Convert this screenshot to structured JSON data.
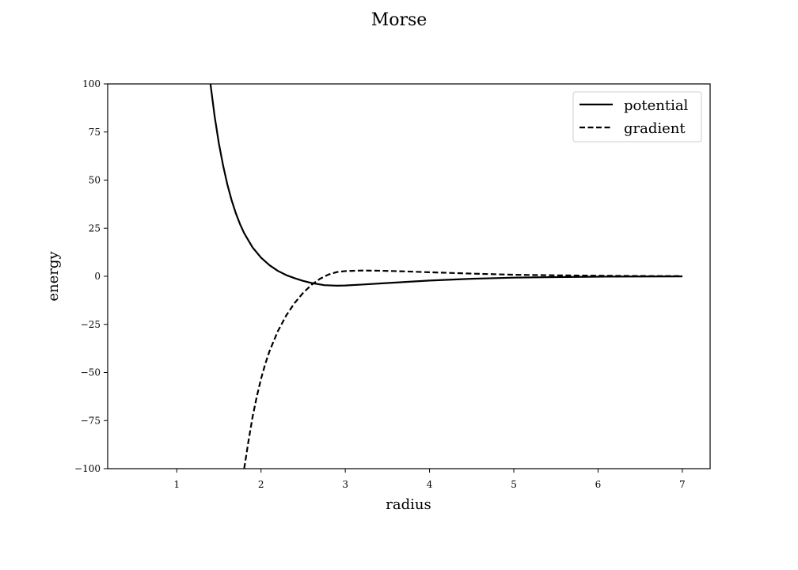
{
  "chart_data": {
    "type": "line",
    "title": "Morse",
    "xlabel": "radius",
    "ylabel": "energy",
    "xlim": [
      0.18,
      7.33
    ],
    "ylim": [
      -100,
      100
    ],
    "xticks": [
      1,
      2,
      3,
      4,
      5,
      6,
      7
    ],
    "yticks": [
      -100,
      -75,
      -50,
      -25,
      0,
      25,
      50,
      75,
      100
    ],
    "grid": false,
    "legend_position": "top-right",
    "series": [
      {
        "name": "potential",
        "style": "solid",
        "color": "#000000",
        "points": [
          [
            1.4,
            100
          ],
          [
            1.45,
            83
          ],
          [
            1.5,
            69
          ],
          [
            1.55,
            57.6
          ],
          [
            1.6,
            47.8
          ],
          [
            1.65,
            39.7
          ],
          [
            1.7,
            32.9
          ],
          [
            1.75,
            27.2
          ],
          [
            1.8,
            22.4
          ],
          [
            1.9,
            15.0
          ],
          [
            2.0,
            9.7
          ],
          [
            2.1,
            5.8
          ],
          [
            2.2,
            2.8
          ],
          [
            2.3,
            0.6
          ],
          [
            2.4,
            -1.0
          ],
          [
            2.5,
            -2.4
          ],
          [
            2.6,
            -3.5
          ],
          [
            2.75,
            -4.6
          ],
          [
            2.9,
            -4.9
          ],
          [
            3.0,
            -4.8
          ],
          [
            3.2,
            -4.3
          ],
          [
            3.5,
            -3.5
          ],
          [
            4.0,
            -2.2
          ],
          [
            4.5,
            -1.3
          ],
          [
            5.0,
            -0.7
          ],
          [
            5.5,
            -0.4
          ],
          [
            6.0,
            -0.2
          ],
          [
            6.5,
            -0.1
          ],
          [
            7.0,
            -0.05
          ]
        ]
      },
      {
        "name": "gradient",
        "style": "dashed",
        "color": "#000000",
        "points": [
          [
            1.8,
            -100
          ],
          [
            1.85,
            -86
          ],
          [
            1.9,
            -73
          ],
          [
            1.95,
            -62.5
          ],
          [
            2.0,
            -53.3
          ],
          [
            2.05,
            -45.6
          ],
          [
            2.1,
            -39.0
          ],
          [
            2.2,
            -28.5
          ],
          [
            2.3,
            -20.3
          ],
          [
            2.4,
            -13.8
          ],
          [
            2.5,
            -8.6
          ],
          [
            2.6,
            -4.4
          ],
          [
            2.7,
            -1.3
          ],
          [
            2.8,
            0.9
          ],
          [
            2.9,
            2.2
          ],
          [
            3.0,
            2.7
          ],
          [
            3.2,
            3.0
          ],
          [
            3.4,
            2.9
          ],
          [
            3.6,
            2.7
          ],
          [
            4.0,
            2.1
          ],
          [
            4.5,
            1.4
          ],
          [
            5.0,
            0.8
          ],
          [
            5.5,
            0.5
          ],
          [
            6.0,
            0.3
          ],
          [
            6.5,
            0.15
          ],
          [
            7.0,
            0.1
          ]
        ]
      }
    ]
  }
}
